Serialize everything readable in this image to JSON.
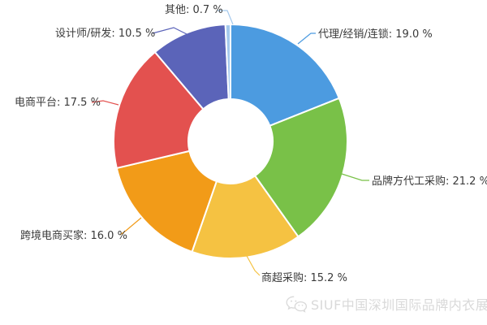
{
  "chart_data": {
    "type": "pie",
    "variant": "donut",
    "title": "",
    "legend_position": "none",
    "grid": false,
    "label_format": "{name}: {value} %",
    "series": [
      {
        "name": "代理/经销/连锁",
        "value": 19.0,
        "color": "#4C9BE0"
      },
      {
        "name": "品牌方代工采购",
        "value": 21.2,
        "color": "#79C148"
      },
      {
        "name": "商超采购",
        "value": 15.2,
        "color": "#F5C242"
      },
      {
        "name": "跨境电商买家",
        "value": 16.0,
        "color": "#F29B18"
      },
      {
        "name": "电商平台",
        "value": 17.5,
        "color": "#E3514F"
      },
      {
        "name": "设计师/研发",
        "value": 10.5,
        "color": "#5B64B9"
      },
      {
        "name": "其他",
        "value": 0.7,
        "color": "#A4C9EE"
      }
    ]
  },
  "watermark": {
    "text": "SIUF中国深圳国际品牌内衣展",
    "color": "#d9d9d9"
  }
}
